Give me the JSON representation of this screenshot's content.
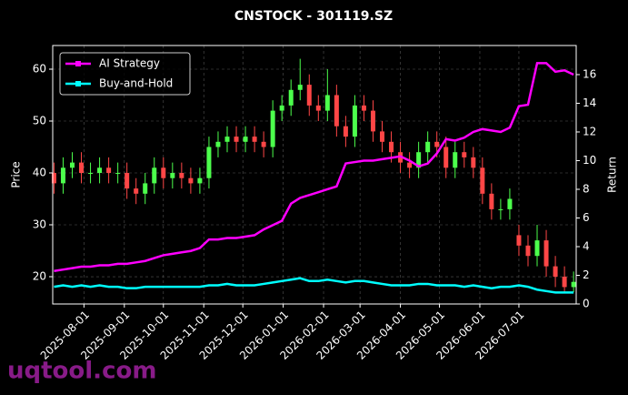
{
  "chart_data": {
    "type": "candlestick",
    "title": "CNSTOCK - 301119.SZ",
    "ylabel": "Price",
    "y2label": "Return",
    "watermark": "uqtool.com",
    "up_color": "#4cff4c",
    "down_color": "#ff4646",
    "x": [
      "2025-07-09",
      "2025-07-16",
      "2025-07-23",
      "2025-07-30",
      "2025-08-06",
      "2025-08-13",
      "2025-08-20",
      "2025-08-27",
      "2025-09-03",
      "2025-09-10",
      "2025-09-17",
      "2025-09-24",
      "2025-10-01",
      "2025-10-08",
      "2025-10-15",
      "2025-10-22",
      "2025-10-29",
      "2025-11-05",
      "2025-11-12",
      "2025-11-19",
      "2025-11-26",
      "2025-12-03",
      "2025-12-10",
      "2025-12-17",
      "2025-12-24",
      "2025-12-31",
      "2026-01-07",
      "2026-01-14",
      "2026-01-21",
      "2026-01-28",
      "2026-02-04",
      "2026-02-11",
      "2026-02-18",
      "2026-02-25",
      "2026-03-04",
      "2026-03-11",
      "2026-03-18",
      "2026-03-25",
      "2026-04-01",
      "2026-04-08",
      "2026-04-15",
      "2026-04-22",
      "2026-04-29",
      "2026-05-06",
      "2026-05-13",
      "2026-05-20",
      "2026-05-27",
      "2026-06-03",
      "2026-06-10",
      "2026-06-17",
      "2026-06-24",
      "2026-07-01",
      "2026-07-08",
      "2026-07-15",
      "2026-07-22",
      "2026-07-29",
      "2026-08-05",
      "2026-08-12"
    ],
    "open": [
      40,
      38,
      41,
      42,
      40,
      40,
      41,
      40,
      40,
      37,
      36,
      38,
      41,
      39,
      40,
      39,
      38,
      39,
      45,
      46,
      47,
      46,
      47,
      46,
      45,
      52,
      53,
      56,
      57,
      53,
      52,
      55,
      49,
      47,
      53,
      52,
      48,
      46,
      44,
      42,
      41,
      44,
      46,
      45,
      41,
      44,
      43,
      41,
      36,
      33,
      33,
      28,
      26,
      24,
      27,
      22,
      20,
      18
    ],
    "high": [
      42,
      43,
      44,
      44,
      42,
      43,
      43,
      42,
      42,
      39,
      40,
      43,
      43,
      42,
      42,
      41,
      41,
      47,
      48,
      49,
      49,
      49,
      49,
      48,
      54,
      55,
      58,
      62,
      59,
      55,
      60,
      57,
      51,
      55,
      55,
      54,
      50,
      48,
      46,
      44,
      46,
      48,
      48,
      47,
      46,
      46,
      45,
      43,
      38,
      35,
      37,
      30,
      28,
      30,
      29,
      24,
      22,
      21
    ],
    "low": [
      36,
      36,
      39,
      38,
      38,
      38,
      38,
      38,
      35,
      34,
      34,
      36,
      37,
      37,
      37,
      36,
      36,
      37,
      43,
      44,
      44,
      44,
      44,
      43,
      43,
      50,
      51,
      54,
      51,
      50,
      50,
      47,
      45,
      45,
      50,
      46,
      44,
      42,
      40,
      39,
      39,
      42,
      43,
      39,
      39,
      41,
      39,
      34,
      31,
      31,
      31,
      24,
      22,
      22,
      20,
      18,
      17,
      17
    ],
    "close": [
      38,
      41,
      42,
      40,
      40,
      41,
      40,
      40,
      37,
      36,
      38,
      41,
      39,
      40,
      39,
      38,
      39,
      45,
      46,
      47,
      46,
      47,
      46,
      45,
      52,
      53,
      56,
      57,
      53,
      52,
      55,
      49,
      47,
      53,
      52,
      48,
      46,
      44,
      42,
      41,
      44,
      46,
      45,
      41,
      44,
      43,
      41,
      36,
      33,
      33,
      35,
      26,
      24,
      27,
      22,
      20,
      18,
      19
    ],
    "series": [
      {
        "name": "AI Strategy",
        "color": "#ff00ff",
        "axis": "y2",
        "values": [
          2.3,
          2.4,
          2.5,
          2.6,
          2.6,
          2.7,
          2.7,
          2.8,
          2.8,
          2.9,
          3.0,
          3.2,
          3.4,
          3.5,
          3.6,
          3.7,
          3.9,
          4.5,
          4.5,
          4.6,
          4.6,
          4.7,
          4.8,
          5.2,
          5.5,
          5.8,
          7.0,
          7.4,
          7.6,
          7.8,
          8.0,
          8.2,
          9.8,
          9.9,
          10.0,
          10.0,
          10.1,
          10.2,
          10.3,
          10.0,
          9.6,
          9.8,
          10.5,
          11.5,
          11.4,
          11.6,
          12.0,
          12.2,
          12.1,
          12.0,
          12.3,
          13.8,
          13.9,
          16.8,
          16.8,
          16.2,
          16.3,
          16.0
        ]
      },
      {
        "name": "Buy-and-Hold",
        "color": "#00ffff",
        "axis": "y2",
        "values": [
          1.2,
          1.3,
          1.2,
          1.3,
          1.2,
          1.3,
          1.2,
          1.2,
          1.1,
          1.1,
          1.2,
          1.2,
          1.2,
          1.2,
          1.2,
          1.2,
          1.2,
          1.3,
          1.3,
          1.4,
          1.3,
          1.3,
          1.3,
          1.4,
          1.5,
          1.6,
          1.7,
          1.8,
          1.6,
          1.6,
          1.7,
          1.6,
          1.5,
          1.6,
          1.6,
          1.5,
          1.4,
          1.3,
          1.3,
          1.3,
          1.4,
          1.4,
          1.3,
          1.3,
          1.3,
          1.2,
          1.3,
          1.2,
          1.1,
          1.2,
          1.2,
          1.3,
          1.2,
          1.0,
          0.9,
          0.8,
          0.8,
          0.8
        ]
      }
    ],
    "xlim": [
      "2025-07-08",
      "2026-08-14"
    ],
    "xticks": [
      "2025-08-01",
      "2025-09-01",
      "2025-10-01",
      "2025-11-01",
      "2025-12-01",
      "2026-01-01",
      "2026-02-01",
      "2026-03-01",
      "2026-04-01",
      "2026-05-01",
      "2026-06-01",
      "2026-07-01"
    ],
    "ylim": [
      14.74,
      64.56
    ],
    "yticks": [
      20,
      30,
      40,
      50,
      60
    ],
    "y2lim": [
      0,
      18.03
    ],
    "y2ticks": [
      0,
      2,
      4,
      6,
      8,
      10,
      12,
      14,
      16
    ],
    "grid": true,
    "legend": "upper left"
  }
}
